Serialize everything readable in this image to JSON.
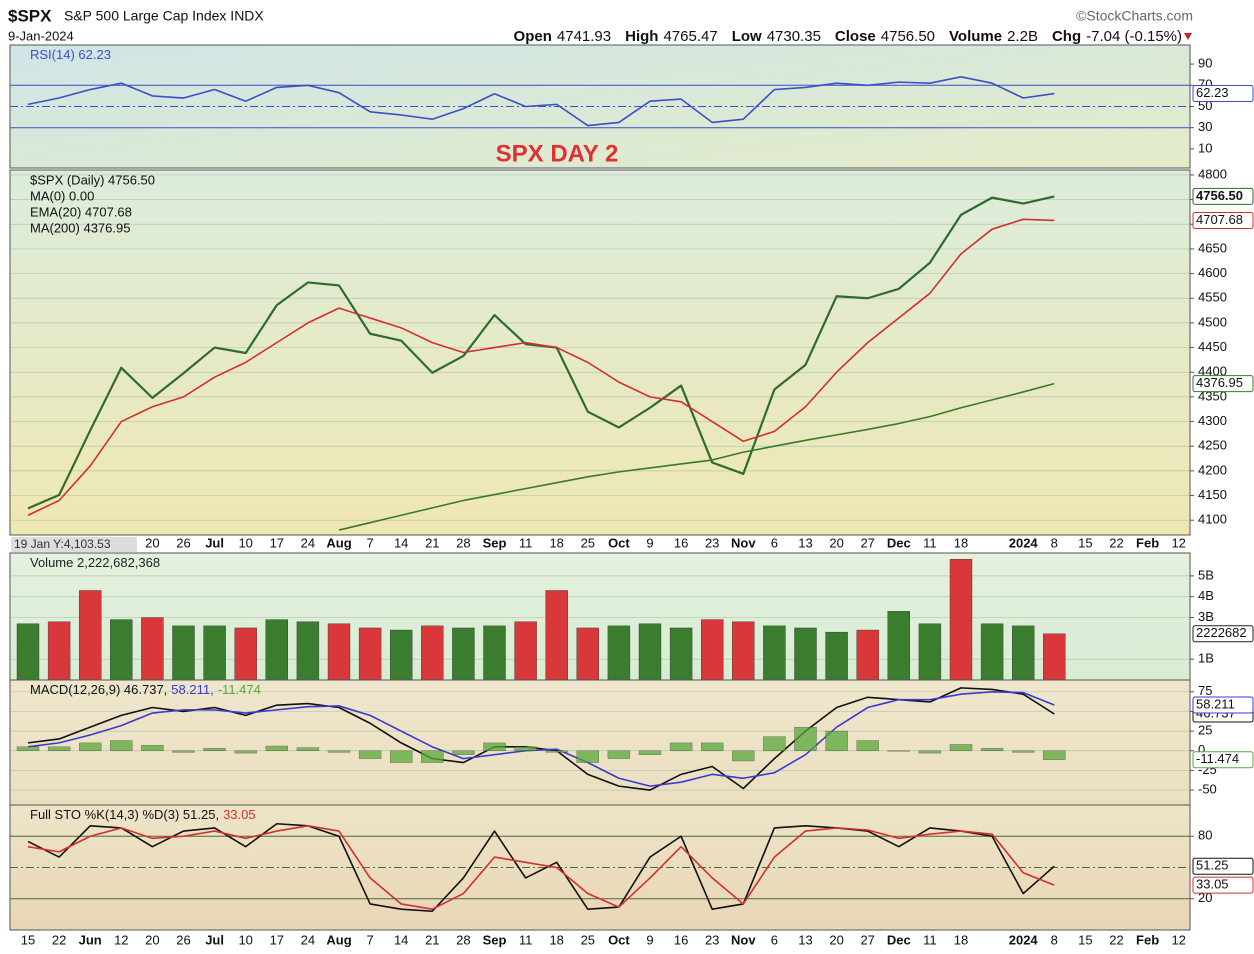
{
  "header": {
    "symbol": "$SPX",
    "name": "S&P 500 Large Cap Index INDX",
    "date": "9-Jan-2024",
    "source": "©StockCharts.com",
    "stats": [
      {
        "label": "Open",
        "value": "4741.93"
      },
      {
        "label": "High",
        "value": "4765.47"
      },
      {
        "label": "Low",
        "value": "4730.35"
      },
      {
        "label": "Close",
        "value": "4756.50"
      },
      {
        "label": "Volume",
        "value": "2.2B"
      },
      {
        "label": "Chg",
        "value": "-7.04 (-0.15%)"
      }
    ]
  },
  "chart_data": [
    {
      "type": "line",
      "annotation": "SPX DAY 2",
      "ylim": [
        -8,
        108
      ],
      "yticks": [
        90,
        70,
        50,
        30,
        10
      ],
      "grid": false,
      "reference_lines": [
        {
          "value": 70
        },
        {
          "value": 50,
          "style": "dashed"
        },
        {
          "value": 30
        }
      ],
      "series": [
        {
          "name": "RSI(14) 62.23",
          "color": "#3a4fc8",
          "last_label": "62.23",
          "values": [
            52,
            58,
            66,
            72,
            60,
            58,
            66,
            55,
            68,
            70,
            63,
            45,
            42,
            38,
            48,
            62,
            50,
            52,
            32,
            35,
            55,
            57,
            35,
            38,
            66,
            68,
            72,
            70,
            73,
            72,
            78,
            72,
            58,
            62.23,
            null,
            null,
            null,
            null
          ]
        }
      ]
    },
    {
      "type": "line",
      "annotation": "19 Jan Y:4,103.53",
      "ylim": [
        4070,
        4810
      ],
      "yticks": [
        4100,
        4150,
        4200,
        4250,
        4300,
        4350,
        4400,
        4450,
        4500,
        4550,
        4600,
        4650,
        4700,
        4750,
        4800
      ],
      "grid": true,
      "categories": [
        "15",
        "22",
        "Jun",
        "12",
        "20",
        "26",
        "Jul",
        "10",
        "17",
        "24",
        "Aug",
        "7",
        "14",
        "21",
        "28",
        "Sep",
        "11",
        "18",
        "25",
        "Oct",
        "9",
        "16",
        "23",
        "Nov",
        "6",
        "13",
        "20",
        "27",
        "Dec",
        "11",
        "18",
        null,
        "2024",
        "8",
        "15",
        "22",
        "Feb",
        "12"
      ],
      "series": [
        {
          "name": "$SPX (Daily) 4756.50",
          "color": "#2e6b2e",
          "last_label": "4756.50",
          "values": [
            4124,
            4151,
            4282,
            4409,
            4348,
            4398,
            4450,
            4439,
            4536,
            4582,
            4576,
            4478,
            4464,
            4399,
            4433,
            4516,
            4457,
            4450,
            4320,
            4288,
            4328,
            4373,
            4217,
            4194,
            4365,
            4415,
            4554,
            4550,
            4569,
            4622,
            4719,
            4754,
            4742,
            4756.5,
            null,
            null,
            null,
            null
          ]
        },
        {
          "name": "MA(0) 0.00",
          "color": "#1f3fbf",
          "values": [
            null,
            null,
            null,
            null,
            null,
            null,
            null,
            null,
            null,
            null,
            null,
            null,
            null,
            null,
            null,
            null,
            null,
            null,
            null,
            null,
            null,
            null,
            null,
            null,
            null,
            null,
            null,
            null,
            null,
            null,
            null,
            null,
            null,
            null,
            null,
            null,
            null,
            null
          ]
        },
        {
          "name": "EMA(20) 4707.68",
          "color": "#d32f2f",
          "last_label": "4707.68",
          "values": [
            4110,
            4140,
            4210,
            4300,
            4330,
            4350,
            4390,
            4420,
            4460,
            4500,
            4530,
            4510,
            4490,
            4460,
            4440,
            4450,
            4460,
            4450,
            4420,
            4380,
            4350,
            4340,
            4300,
            4260,
            4280,
            4330,
            4400,
            4460,
            4510,
            4560,
            4640,
            4690,
            4710,
            4707.68,
            null,
            null,
            null,
            null
          ]
        },
        {
          "name": "MA(200) 4376.95",
          "color": "#3a7a2a",
          "last_label": "4376.95",
          "values": [
            null,
            null,
            null,
            null,
            null,
            null,
            null,
            null,
            null,
            null,
            4080,
            4095,
            4110,
            4125,
            4140,
            4152,
            4164,
            4176,
            4188,
            4198,
            4206,
            4214,
            4222,
            4238,
            4250,
            4262,
            4273,
            4284,
            4296,
            4310,
            4328,
            4344,
            4360,
            4376.95,
            null,
            null,
            null,
            null
          ]
        }
      ]
    },
    {
      "type": "bar",
      "ylim": [
        0,
        6.1
      ],
      "grid": true,
      "yticks": [
        {
          "value": 5,
          "label": "5B"
        },
        {
          "value": 4,
          "label": "4B"
        },
        {
          "value": 3,
          "label": "3B"
        },
        {
          "value": 1,
          "label": "1B"
        }
      ],
      "series": [
        {
          "name": "Volume 2,222,682,368",
          "last_label": "2222682",
          "values": [
            2.7,
            2.8,
            4.3,
            2.9,
            3.0,
            2.6,
            2.6,
            2.5,
            2.9,
            2.8,
            2.7,
            2.5,
            2.4,
            2.6,
            2.5,
            2.6,
            2.8,
            4.3,
            2.5,
            2.6,
            2.7,
            2.5,
            2.9,
            2.8,
            2.6,
            2.5,
            2.3,
            2.4,
            3.3,
            2.7,
            5.8,
            2.7,
            2.6,
            2.22,
            null,
            null,
            null,
            null
          ],
          "colors": [
            "#3a7d2e",
            "#d9383a",
            "#d9383a",
            "#3a7d2e",
            "#d9383a",
            "#3a7d2e",
            "#3a7d2e",
            "#d9383a",
            "#3a7d2e",
            "#3a7d2e",
            "#d9383a",
            "#d9383a",
            "#3a7d2e",
            "#d9383a",
            "#3a7d2e",
            "#3a7d2e",
            "#d9383a",
            "#d9383a",
            "#d9383a",
            "#3a7d2e",
            "#3a7d2e",
            "#3a7d2e",
            "#d9383a",
            "#d9383a",
            "#3a7d2e",
            "#3a7d2e",
            "#3a7d2e",
            "#d9383a",
            "#3a7d2e",
            "#3a7d2e",
            "#d9383a",
            "#3a7d2e",
            "#3a7d2e",
            "#d9383a",
            null,
            null,
            null,
            null
          ]
        }
      ]
    },
    {
      "type": "line",
      "ylim": [
        -69,
        90
      ],
      "yticks": [
        75,
        50,
        25,
        0,
        -25,
        -50
      ],
      "grid": true,
      "series": [
        {
          "name": "MACD(12,26,9) 46.737,",
          "color": "#111111",
          "last_label": "46.737",
          "values": [
            10,
            15,
            30,
            45,
            55,
            50,
            55,
            45,
            58,
            60,
            55,
            35,
            10,
            -10,
            -15,
            5,
            5,
            0,
            -30,
            -45,
            -50,
            -30,
            -20,
            -48,
            -10,
            25,
            55,
            68,
            65,
            62,
            80,
            78,
            72,
            46.737,
            null,
            null,
            null,
            null
          ]
        },
        {
          "name": "58.211,",
          "color": "#3a3ad0",
          "last_label": "58.211",
          "values": [
            5,
            10,
            20,
            32,
            48,
            52,
            52,
            48,
            52,
            56,
            57,
            45,
            25,
            5,
            -10,
            -5,
            0,
            2,
            -15,
            -35,
            -45,
            -40,
            -30,
            -35,
            -28,
            -5,
            30,
            55,
            65,
            65,
            72,
            75,
            74,
            58.211,
            null,
            null,
            null,
            null
          ]
        },
        {
          "name": "-11.474",
          "color": "#5aa83a",
          "type": "bar",
          "last_label": "-11.474",
          "values": [
            5,
            5,
            10,
            13,
            7,
            -2,
            3,
            -3,
            6,
            4,
            -2,
            -10,
            -15,
            -15,
            -5,
            10,
            5,
            -2,
            -15,
            -10,
            -5,
            10,
            10,
            -13,
            18,
            30,
            25,
            13,
            0,
            -3,
            8,
            3,
            -2,
            -11.474,
            null,
            null,
            null,
            null
          ]
        }
      ]
    },
    {
      "type": "line",
      "ylim": [
        -10,
        110
      ],
      "yticks": [
        80,
        20
      ],
      "grid": false,
      "reference_lines": [
        {
          "value": 80
        },
        {
          "value": 50,
          "style": "dashed"
        },
        {
          "value": 20
        }
      ],
      "categories": [
        "15",
        "22",
        "Jun",
        "12",
        "20",
        "26",
        "Jul",
        "10",
        "17",
        "24",
        "Aug",
        "7",
        "14",
        "21",
        "28",
        "Sep",
        "11",
        "18",
        "25",
        "Oct",
        "9",
        "16",
        "23",
        "Nov",
        "6",
        "13",
        "20",
        "27",
        "Dec",
        "11",
        "18",
        null,
        "2024",
        "8",
        "15",
        "22",
        "Feb",
        "12"
      ],
      "series": [
        {
          "name": "Full STO %K(14,3) %D(3) 51.25,",
          "color": "#111111",
          "last_label": "51.25",
          "values": [
            75,
            60,
            90,
            88,
            70,
            85,
            88,
            70,
            92,
            90,
            80,
            15,
            10,
            8,
            40,
            85,
            40,
            55,
            10,
            12,
            60,
            80,
            10,
            15,
            88,
            90,
            88,
            85,
            70,
            88,
            85,
            80,
            25,
            51.25,
            null,
            null,
            null,
            null
          ]
        },
        {
          "name": "33.05",
          "color": "#d32f2f",
          "last_label": "33.05",
          "values": [
            70,
            65,
            80,
            88,
            78,
            80,
            85,
            78,
            85,
            90,
            85,
            40,
            15,
            10,
            25,
            60,
            55,
            50,
            25,
            12,
            40,
            70,
            40,
            15,
            60,
            85,
            88,
            86,
            78,
            82,
            85,
            82,
            45,
            33.05,
            null,
            null,
            null,
            null
          ]
        }
      ]
    }
  ]
}
